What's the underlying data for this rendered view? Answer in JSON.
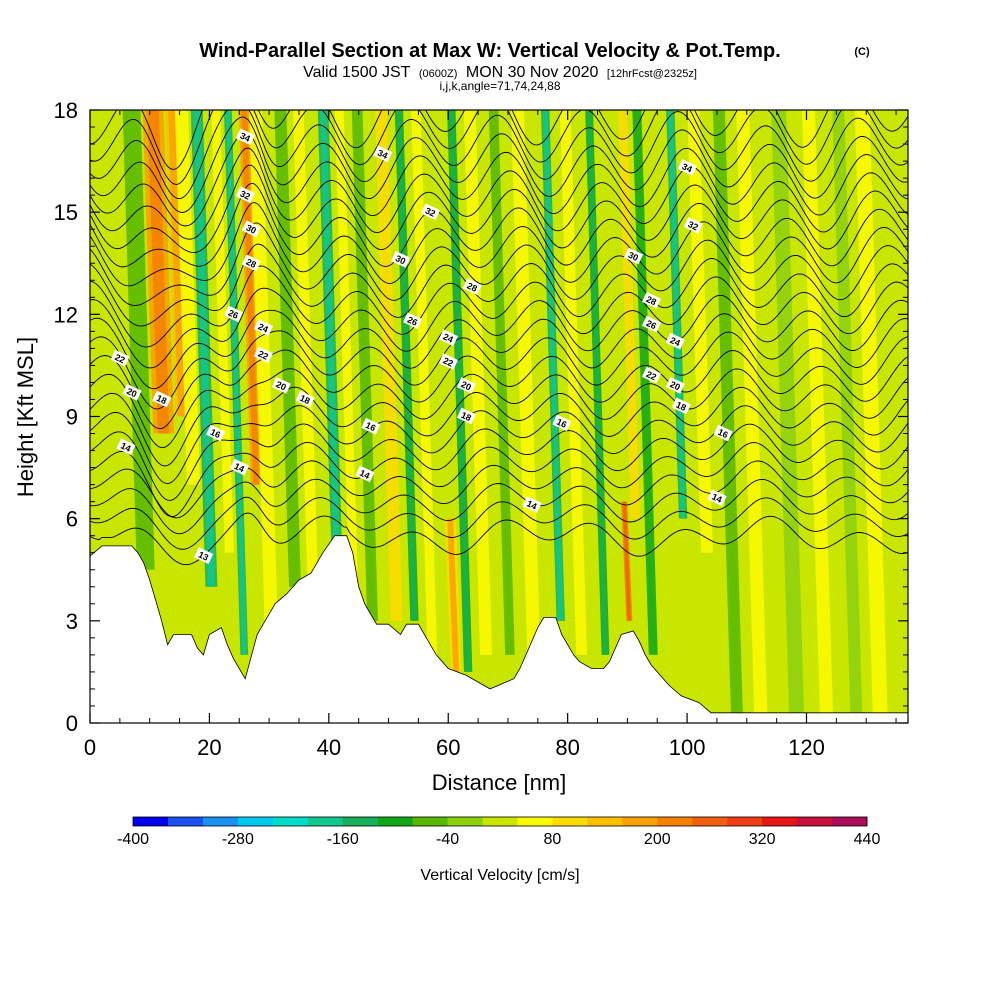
{
  "chart_data": {
    "type": "heatmap",
    "title": "Wind-Parallel Section at Max W: Vertical Velocity & Pot.Temp.",
    "title_mark": "(C)",
    "subtitle": {
      "part1": "Valid 1500 JST",
      "part2": "(0600Z)",
      "part3": "MON 30 Nov 2020",
      "part4": "[12hrFcst@2325z]"
    },
    "info": "i,j,k,angle=71,74,24,88",
    "xlabel": "Distance [nm]",
    "ylabel": "Height [Kft MSL]",
    "xlim": [
      0,
      137
    ],
    "ylim": [
      0,
      18
    ],
    "xticks": [
      "0",
      "20",
      "40",
      "60",
      "80",
      "100",
      "120"
    ],
    "xtick_values": [
      0,
      20,
      40,
      60,
      80,
      100,
      120
    ],
    "yticks": [
      "0",
      "3",
      "6",
      "9",
      "12",
      "15",
      "18"
    ],
    "ytick_values": [
      0,
      3,
      6,
      9,
      12,
      15,
      18
    ],
    "colorbar": {
      "title": "Vertical Velocity [cm/s]",
      "labels": [
        "-400",
        "-280",
        "-160",
        "-40",
        "80",
        "200",
        "320",
        "440"
      ],
      "label_values": [
        -400,
        -280,
        -160,
        -40,
        80,
        200,
        320,
        440
      ],
      "min": -400,
      "max": 440,
      "step": 40,
      "colors": [
        "#0000ee",
        "#1c50f0",
        "#1c90f0",
        "#00c8f0",
        "#00dcc8",
        "#10c890",
        "#18b058",
        "#10a818",
        "#58b800",
        "#8cd010",
        "#c8e600",
        "#fafa00",
        "#fadc00",
        "#fac000",
        "#faa000",
        "#f58000",
        "#f06010",
        "#f03c14",
        "#e61414",
        "#c8103c",
        "#aa0e5a",
        "#8c0a78",
        "#6e0a8c"
      ]
    },
    "terrain_height_kft": [
      [
        0,
        4.9
      ],
      [
        2,
        5.2
      ],
      [
        7,
        5.2
      ],
      [
        8,
        5.0
      ],
      [
        9,
        4.7
      ],
      [
        10,
        4.2
      ],
      [
        11,
        3.6
      ],
      [
        12,
        3.0
      ],
      [
        13,
        2.3
      ],
      [
        14,
        2.6
      ],
      [
        17,
        2.6
      ],
      [
        18,
        2.2
      ],
      [
        19,
        2.0
      ],
      [
        20,
        2.6
      ],
      [
        22,
        2.8
      ],
      [
        23,
        2.3
      ],
      [
        24,
        1.9
      ],
      [
        26,
        1.3
      ],
      [
        28,
        2.6
      ],
      [
        29,
        2.9
      ],
      [
        31,
        3.5
      ],
      [
        33,
        3.8
      ],
      [
        35,
        4.2
      ],
      [
        37,
        4.4
      ],
      [
        39,
        5.0
      ],
      [
        41,
        5.5
      ],
      [
        43,
        5.5
      ],
      [
        44,
        5.0
      ],
      [
        45,
        4.0
      ],
      [
        46,
        3.5
      ],
      [
        47,
        3.2
      ],
      [
        48,
        2.9
      ],
      [
        50,
        2.9
      ],
      [
        52,
        2.6
      ],
      [
        53,
        2.9
      ],
      [
        55,
        2.9
      ],
      [
        56,
        2.6
      ],
      [
        57,
        2.3
      ],
      [
        58,
        2.0
      ],
      [
        59,
        1.8
      ],
      [
        60,
        1.6
      ],
      [
        63,
        1.4
      ],
      [
        65,
        1.2
      ],
      [
        67,
        1.0
      ],
      [
        71,
        1.3
      ],
      [
        72,
        1.6
      ],
      [
        73,
        2.0
      ],
      [
        74,
        2.4
      ],
      [
        75,
        2.8
      ],
      [
        76,
        3.1
      ],
      [
        78,
        3.1
      ],
      [
        79,
        2.6
      ],
      [
        80,
        2.3
      ],
      [
        81,
        2.0
      ],
      [
        82,
        1.8
      ],
      [
        84,
        1.6
      ],
      [
        86,
        1.6
      ],
      [
        87,
        1.8
      ],
      [
        88,
        2.2
      ],
      [
        89,
        2.6
      ],
      [
        91,
        2.7
      ],
      [
        92,
        2.4
      ],
      [
        93,
        2.0
      ],
      [
        94,
        1.7
      ],
      [
        95,
        1.5
      ],
      [
        97,
        1.1
      ],
      [
        99,
        0.8
      ],
      [
        102,
        0.6
      ],
      [
        104,
        0.3
      ],
      [
        137,
        0.3
      ]
    ],
    "bands": [
      {
        "x": 9,
        "w": 3.0,
        "v": -60,
        "z0": 4.5,
        "z1": 18
      },
      {
        "x": 12,
        "w": 3.5,
        "v": 170,
        "z0": 8.5,
        "z1": 18
      },
      {
        "x": 15,
        "w": 2.0,
        "v": 130,
        "z0": 9.0,
        "z1": 18
      },
      {
        "x": 17,
        "w": 2.2,
        "v": 40,
        "z0": 7.0,
        "z1": 18
      },
      {
        "x": 20,
        "w": 2.0,
        "v": -130,
        "z0": 4.0,
        "z1": 18
      },
      {
        "x": 23,
        "w": 1.5,
        "v": 60,
        "z0": 5.0,
        "z1": 18
      },
      {
        "x": 25.5,
        "w": 1.3,
        "v": -140,
        "z0": 2.0,
        "z1": 18
      },
      {
        "x": 27.5,
        "w": 1.8,
        "v": 170,
        "z0": 7.0,
        "z1": 18
      },
      {
        "x": 30,
        "w": 2.2,
        "v": 40,
        "z0": 3.0,
        "z1": 18
      },
      {
        "x": 34,
        "w": 2.0,
        "v": -60,
        "z0": 4.0,
        "z1": 18
      },
      {
        "x": 37,
        "w": 1.8,
        "v": 70,
        "z0": 4.0,
        "z1": 18
      },
      {
        "x": 41,
        "w": 1.8,
        "v": -140,
        "z0": 5.0,
        "z1": 18
      },
      {
        "x": 44,
        "w": 1.5,
        "v": 60,
        "z0": 3.0,
        "z1": 18
      },
      {
        "x": 47,
        "w": 1.8,
        "v": -60,
        "z0": 3.0,
        "z1": 18
      },
      {
        "x": 51,
        "w": 2.0,
        "v": 90,
        "z0": 3.0,
        "z1": 18
      },
      {
        "x": 54,
        "w": 1.4,
        "v": -100,
        "z0": 3.0,
        "z1": 18
      },
      {
        "x": 57,
        "w": 1.6,
        "v": 60,
        "z0": 2.0,
        "z1": 18
      },
      {
        "x": 61,
        "w": 1.8,
        "v": 100,
        "z0": 1.5,
        "z1": 6.0
      },
      {
        "x": 63,
        "w": 1.4,
        "v": -120,
        "z0": 1.5,
        "z1": 18
      },
      {
        "x": 66,
        "w": 2.0,
        "v": 50,
        "z0": 2.0,
        "z1": 18
      },
      {
        "x": 70,
        "w": 1.6,
        "v": -80,
        "z0": 2.0,
        "z1": 18
      },
      {
        "x": 74,
        "w": 2.2,
        "v": 40,
        "z0": 2.0,
        "z1": 18
      },
      {
        "x": 78.5,
        "w": 1.4,
        "v": -150,
        "z0": 3.0,
        "z1": 18
      },
      {
        "x": 82,
        "w": 1.8,
        "v": 50,
        "z0": 2.0,
        "z1": 18
      },
      {
        "x": 86,
        "w": 1.3,
        "v": -100,
        "z0": 2.0,
        "z1": 18
      },
      {
        "x": 90,
        "w": 1.0,
        "v": 200,
        "z0": 3.0,
        "z1": 6.5
      },
      {
        "x": 91,
        "w": 1.5,
        "v": 80,
        "z0": 6.0,
        "z1": 18
      },
      {
        "x": 94,
        "w": 1.5,
        "v": -90,
        "z0": 2.0,
        "z1": 18
      },
      {
        "x": 99,
        "w": 1.4,
        "v": -130,
        "z0": 6.0,
        "z1": 18
      },
      {
        "x": 103,
        "w": 2.0,
        "v": 70,
        "z0": 5.0,
        "z1": 18
      },
      {
        "x": 108,
        "w": 2.0,
        "v": -50,
        "z0": 0.3,
        "z1": 18
      },
      {
        "x": 112,
        "w": 2.2,
        "v": 60,
        "z0": 0.3,
        "z1": 18
      },
      {
        "x": 118,
        "w": 2.5,
        "v": -40,
        "z0": 0.3,
        "z1": 18
      },
      {
        "x": 123,
        "w": 2.2,
        "v": 50,
        "z0": 0.3,
        "z1": 18
      },
      {
        "x": 128,
        "w": 2.0,
        "v": -40,
        "z0": 0.3,
        "z1": 18
      },
      {
        "x": 132,
        "w": 2.5,
        "v": 40,
        "z0": 0.3,
        "z1": 18
      }
    ],
    "theta_levels": [
      13,
      14,
      15,
      16,
      17,
      18,
      19,
      20,
      21,
      22,
      23,
      24,
      25,
      26,
      27,
      28,
      29,
      30,
      31,
      32,
      33,
      34,
      35,
      36,
      37
    ],
    "theta_labels": [
      {
        "text": "34",
        "x": 26,
        "z": 17.2
      },
      {
        "text": "32",
        "x": 26,
        "z": 15.5
      },
      {
        "text": "30",
        "x": 27,
        "z": 14.5
      },
      {
        "text": "28",
        "x": 27,
        "z": 13.5
      },
      {
        "text": "26",
        "x": 24,
        "z": 12.0
      },
      {
        "text": "24",
        "x": 29,
        "z": 11.6
      },
      {
        "text": "22",
        "x": 29,
        "z": 10.8
      },
      {
        "text": "20",
        "x": 32,
        "z": 9.9
      },
      {
        "text": "18",
        "x": 36,
        "z": 9.5
      },
      {
        "text": "16",
        "x": 21,
        "z": 8.5
      },
      {
        "text": "14",
        "x": 25,
        "z": 7.5
      },
      {
        "text": "13",
        "x": 19,
        "z": 4.9
      },
      {
        "text": "22",
        "x": 5,
        "z": 10.7
      },
      {
        "text": "20",
        "x": 7,
        "z": 9.7
      },
      {
        "text": "18",
        "x": 12,
        "z": 9.5
      },
      {
        "text": "14",
        "x": 6,
        "z": 8.1
      },
      {
        "text": "34",
        "x": 49,
        "z": 16.7
      },
      {
        "text": "32",
        "x": 57,
        "z": 15.0
      },
      {
        "text": "30",
        "x": 52,
        "z": 13.6
      },
      {
        "text": "28",
        "x": 64,
        "z": 12.8
      },
      {
        "text": "26",
        "x": 54,
        "z": 11.8
      },
      {
        "text": "24",
        "x": 60,
        "z": 11.3
      },
      {
        "text": "22",
        "x": 60,
        "z": 10.6
      },
      {
        "text": "20",
        "x": 63,
        "z": 9.9
      },
      {
        "text": "18",
        "x": 63,
        "z": 9.0
      },
      {
        "text": "16",
        "x": 47,
        "z": 8.7
      },
      {
        "text": "14",
        "x": 46,
        "z": 7.3
      },
      {
        "text": "14",
        "x": 74,
        "z": 6.4
      },
      {
        "text": "16",
        "x": 79,
        "z": 8.8
      },
      {
        "text": "34",
        "x": 100,
        "z": 16.3
      },
      {
        "text": "32",
        "x": 101,
        "z": 14.6
      },
      {
        "text": "30",
        "x": 91,
        "z": 13.7
      },
      {
        "text": "28",
        "x": 94,
        "z": 12.4
      },
      {
        "text": "26",
        "x": 94,
        "z": 11.7
      },
      {
        "text": "24",
        "x": 98,
        "z": 11.2
      },
      {
        "text": "22",
        "x": 94,
        "z": 10.2
      },
      {
        "text": "20",
        "x": 98,
        "z": 9.9
      },
      {
        "text": "18",
        "x": 99,
        "z": 9.3
      },
      {
        "text": "16",
        "x": 106,
        "z": 8.5
      },
      {
        "text": "14",
        "x": 105,
        "z": 6.6
      }
    ]
  }
}
